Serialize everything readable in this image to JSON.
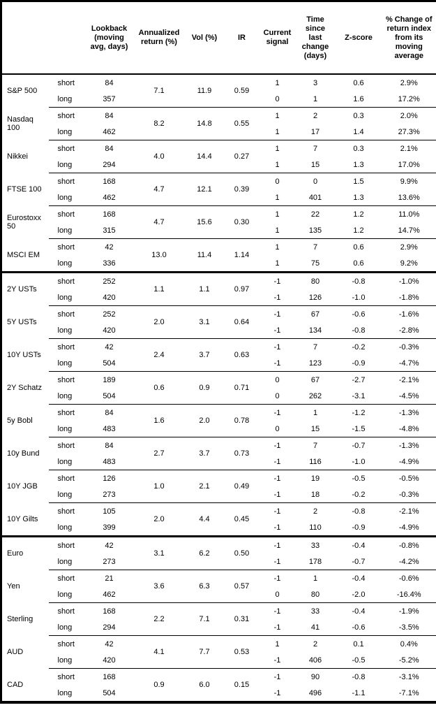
{
  "header": {
    "blank": "",
    "cols": {
      "lookback": "Lookback\n(moving\navg, days)",
      "annualized": "Annualized\nreturn (%)",
      "vol": "Vol (%)",
      "ir": "IR",
      "signal": "Current\nsignal",
      "time": "Time since\nlast change\n(days)",
      "zscore": "Z-score",
      "pct_change": "% Change of\nreturn index\nfrom its\nmoving\naverage"
    }
  },
  "side_labels": {
    "short": "short",
    "long": "long"
  },
  "assets": [
    {
      "name": "S&P 500",
      "section_start": false,
      "annualized": "7.1",
      "vol": "11.9",
      "ir": "0.59",
      "short": {
        "lookback": "84",
        "signal": "1",
        "time": "3",
        "z": "0.6",
        "pct": "2.9%"
      },
      "long": {
        "lookback": "357",
        "signal": "0",
        "time": "1",
        "z": "1.6",
        "pct": "17.2%"
      }
    },
    {
      "name": "Nasdaq 100",
      "section_start": false,
      "annualized": "8.2",
      "vol": "14.8",
      "ir": "0.55",
      "short": {
        "lookback": "84",
        "signal": "1",
        "time": "2",
        "z": "0.3",
        "pct": "2.0%"
      },
      "long": {
        "lookback": "462",
        "signal": "1",
        "time": "17",
        "z": "1.4",
        "pct": "27.3%"
      }
    },
    {
      "name": "Nikkei",
      "section_start": false,
      "annualized": "4.0",
      "vol": "14.4",
      "ir": "0.27",
      "short": {
        "lookback": "84",
        "signal": "1",
        "time": "7",
        "z": "0.3",
        "pct": "2.1%"
      },
      "long": {
        "lookback": "294",
        "signal": "1",
        "time": "15",
        "z": "1.3",
        "pct": "17.0%"
      }
    },
    {
      "name": "FTSE 100",
      "section_start": false,
      "annualized": "4.7",
      "vol": "12.1",
      "ir": "0.39",
      "short": {
        "lookback": "168",
        "signal": "0",
        "time": "0",
        "z": "1.5",
        "pct": "9.9%"
      },
      "long": {
        "lookback": "462",
        "signal": "1",
        "time": "401",
        "z": "1.3",
        "pct": "13.6%"
      }
    },
    {
      "name": "Eurostoxx 50",
      "section_start": false,
      "annualized": "4.7",
      "vol": "15.6",
      "ir": "0.30",
      "short": {
        "lookback": "168",
        "signal": "1",
        "time": "22",
        "z": "1.2",
        "pct": "11.0%"
      },
      "long": {
        "lookback": "315",
        "signal": "1",
        "time": "135",
        "z": "1.2",
        "pct": "14.7%"
      }
    },
    {
      "name": "MSCI EM",
      "section_start": false,
      "annualized": "13.0",
      "vol": "11.4",
      "ir": "1.14",
      "short": {
        "lookback": "42",
        "signal": "1",
        "time": "7",
        "z": "0.6",
        "pct": "2.9%"
      },
      "long": {
        "lookback": "336",
        "signal": "1",
        "time": "75",
        "z": "0.6",
        "pct": "9.2%"
      }
    },
    {
      "name": "2Y USTs",
      "section_start": true,
      "annualized": "1.1",
      "vol": "1.1",
      "ir": "0.97",
      "short": {
        "lookback": "252",
        "signal": "-1",
        "time": "80",
        "z": "-0.8",
        "pct": "-1.0%"
      },
      "long": {
        "lookback": "420",
        "signal": "-1",
        "time": "126",
        "z": "-1.0",
        "pct": "-1.8%"
      }
    },
    {
      "name": "5Y USTs",
      "section_start": false,
      "annualized": "2.0",
      "vol": "3.1",
      "ir": "0.64",
      "short": {
        "lookback": "252",
        "signal": "-1",
        "time": "67",
        "z": "-0.6",
        "pct": "-1.6%"
      },
      "long": {
        "lookback": "420",
        "signal": "-1",
        "time": "134",
        "z": "-0.8",
        "pct": "-2.8%"
      }
    },
    {
      "name": "10Y USTs",
      "section_start": false,
      "annualized": "2.4",
      "vol": "3.7",
      "ir": "0.63",
      "short": {
        "lookback": "42",
        "signal": "-1",
        "time": "7",
        "z": "-0.2",
        "pct": "-0.3%"
      },
      "long": {
        "lookback": "504",
        "signal": "-1",
        "time": "123",
        "z": "-0.9",
        "pct": "-4.7%"
      }
    },
    {
      "name": "2Y Schatz",
      "section_start": false,
      "annualized": "0.6",
      "vol": "0.9",
      "ir": "0.71",
      "short": {
        "lookback": "189",
        "signal": "0",
        "time": "67",
        "z": "-2.7",
        "pct": "-2.1%"
      },
      "long": {
        "lookback": "504",
        "signal": "0",
        "time": "262",
        "z": "-3.1",
        "pct": "-4.5%"
      }
    },
    {
      "name": "5y Bobl",
      "section_start": false,
      "annualized": "1.6",
      "vol": "2.0",
      "ir": "0.78",
      "short": {
        "lookback": "84",
        "signal": "-1",
        "time": "1",
        "z": "-1.2",
        "pct": "-1.3%"
      },
      "long": {
        "lookback": "483",
        "signal": "0",
        "time": "15",
        "z": "-1.5",
        "pct": "-4.8%"
      }
    },
    {
      "name": "10y Bund",
      "section_start": false,
      "annualized": "2.7",
      "vol": "3.7",
      "ir": "0.73",
      "short": {
        "lookback": "84",
        "signal": "-1",
        "time": "7",
        "z": "-0.7",
        "pct": "-1.3%"
      },
      "long": {
        "lookback": "483",
        "signal": "-1",
        "time": "116",
        "z": "-1.0",
        "pct": "-4.9%"
      }
    },
    {
      "name": "10Y JGB",
      "section_start": false,
      "annualized": "1.0",
      "vol": "2.1",
      "ir": "0.49",
      "short": {
        "lookback": "126",
        "signal": "-1",
        "time": "19",
        "z": "-0.5",
        "pct": "-0.5%"
      },
      "long": {
        "lookback": "273",
        "signal": "-1",
        "time": "18",
        "z": "-0.2",
        "pct": "-0.3%"
      }
    },
    {
      "name": "10Y Gilts",
      "section_start": false,
      "annualized": "2.0",
      "vol": "4.4",
      "ir": "0.45",
      "short": {
        "lookback": "105",
        "signal": "-1",
        "time": "2",
        "z": "-0.8",
        "pct": "-2.1%"
      },
      "long": {
        "lookback": "399",
        "signal": "-1",
        "time": "110",
        "z": "-0.9",
        "pct": "-4.9%"
      }
    },
    {
      "name": "Euro",
      "section_start": true,
      "annualized": "3.1",
      "vol": "6.2",
      "ir": "0.50",
      "short": {
        "lookback": "42",
        "signal": "-1",
        "time": "33",
        "z": "-0.4",
        "pct": "-0.8%"
      },
      "long": {
        "lookback": "273",
        "signal": "-1",
        "time": "178",
        "z": "-0.7",
        "pct": "-4.2%"
      }
    },
    {
      "name": "Yen",
      "section_start": false,
      "annualized": "3.6",
      "vol": "6.3",
      "ir": "0.57",
      "short": {
        "lookback": "21",
        "signal": "-1",
        "time": "1",
        "z": "-0.4",
        "pct": "-0.6%"
      },
      "long": {
        "lookback": "462",
        "signal": "0",
        "time": "80",
        "z": "-2.0",
        "pct": "-16.4%"
      }
    },
    {
      "name": "Sterling",
      "section_start": false,
      "annualized": "2.2",
      "vol": "7.1",
      "ir": "0.31",
      "short": {
        "lookback": "168",
        "signal": "-1",
        "time": "33",
        "z": "-0.4",
        "pct": "-1.9%"
      },
      "long": {
        "lookback": "294",
        "signal": "-1",
        "time": "41",
        "z": "-0.6",
        "pct": "-3.5%"
      }
    },
    {
      "name": "AUD",
      "section_start": false,
      "annualized": "4.1",
      "vol": "7.7",
      "ir": "0.53",
      "short": {
        "lookback": "42",
        "signal": "1",
        "time": "2",
        "z": "0.1",
        "pct": "0.4%"
      },
      "long": {
        "lookback": "420",
        "signal": "-1",
        "time": "406",
        "z": "-0.5",
        "pct": "-5.2%"
      }
    },
    {
      "name": "CAD",
      "section_start": false,
      "annualized": "0.9",
      "vol": "6.0",
      "ir": "0.15",
      "short": {
        "lookback": "168",
        "signal": "-1",
        "time": "90",
        "z": "-0.8",
        "pct": "-3.1%"
      },
      "long": {
        "lookback": "504",
        "signal": "-1",
        "time": "496",
        "z": "-1.1",
        "pct": "-7.1%"
      }
    }
  ]
}
